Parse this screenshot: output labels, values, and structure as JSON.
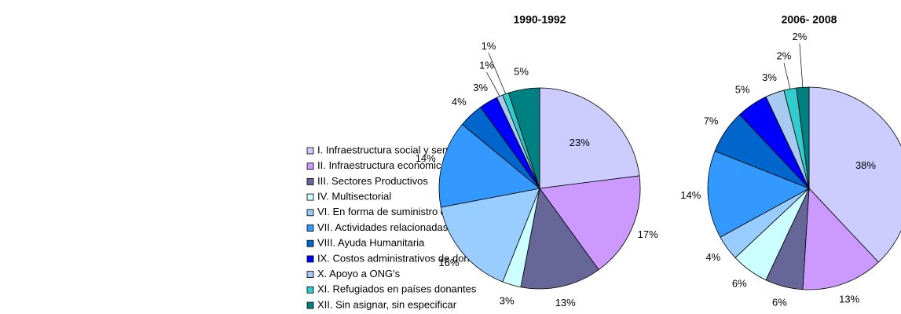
{
  "legend": [
    "I. Infraestructura social y servicios",
    "II. Infraestructura económica y servicios",
    "III. Sectores Productivos",
    "IV. Multisectorial",
    "VI. En forma de suministro de bienes y ayuda gral. para programas",
    "VII. Actividades relacionadas con la deuda",
    "VIII. Ayuda Humanitaria",
    "IX. Costos administrativos de donantes",
    "X. Apoyo a ONG's",
    "XI. Refugiados en países donantes",
    "XII. Sin asignar, sin especificar"
  ],
  "colors": [
    "#ccccff",
    "#cc99ff",
    "#666699",
    "#ccffff",
    "#99ccff",
    "#3399ff",
    "#0066cc",
    "#0000ff",
    "#a6caf0",
    "#33cccc",
    "#008080"
  ],
  "chart_data": [
    {
      "type": "pie",
      "title": "1990-1992",
      "values": [
        23,
        17,
        13,
        3,
        16,
        14,
        4,
        3,
        1,
        1,
        5
      ],
      "value_labels": [
        "23%",
        "17%",
        "13%",
        "3%",
        "16%",
        "14%",
        "4%",
        "3%",
        "1%",
        "1%",
        "5%"
      ]
    },
    {
      "type": "pie",
      "title": "2006- 2008",
      "values": [
        38,
        13,
        6,
        6,
        4,
        14,
        7,
        5,
        3,
        2,
        2
      ],
      "value_labels": [
        "38%",
        "13%",
        "6%",
        "6%",
        "4%",
        "14%",
        "7%",
        "5%",
        "3%",
        "2%",
        "2%"
      ]
    }
  ]
}
